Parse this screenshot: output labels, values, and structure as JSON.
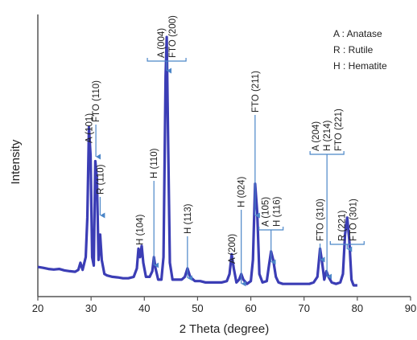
{
  "chart_data": {
    "type": "line",
    "xlabel": "2 Theta (degree)",
    "ylabel": "Intensity",
    "xlim": [
      20,
      90
    ],
    "ylim": [
      0,
      100
    ],
    "x_ticks": [
      20,
      30,
      40,
      50,
      60,
      70,
      80,
      90
    ],
    "y_ticks_shown": false,
    "grid": false,
    "colors": {
      "line": "#3b3db5",
      "axis": "#555555",
      "arrow": "#4b86c8",
      "bracket": "#4b86c8"
    },
    "legend": {
      "placement": "top-right",
      "entries": [
        "A : Anatase",
        "R : Rutile",
        "H : Hematite"
      ]
    },
    "series": [
      {
        "points": [
          [
            20,
            10.5
          ],
          [
            21,
            10.2
          ],
          [
            22,
            9.8
          ],
          [
            23,
            9.6
          ],
          [
            24,
            9.8
          ],
          [
            25,
            9.3
          ],
          [
            26,
            9.0
          ],
          [
            27,
            8.8
          ],
          [
            27.6,
            9.5
          ],
          [
            28,
            12
          ],
          [
            28.4,
            9.5
          ],
          [
            29,
            14
          ],
          [
            29.3,
            28
          ],
          [
            29.6,
            60
          ],
          [
            29.9,
            50
          ],
          [
            30.2,
            14
          ],
          [
            30.5,
            11
          ],
          [
            30.8,
            48
          ],
          [
            31.1,
            42
          ],
          [
            31.4,
            13
          ],
          [
            31.7,
            22
          ],
          [
            32.0,
            13
          ],
          [
            32.5,
            8
          ],
          [
            33,
            7.5
          ],
          [
            34,
            7
          ],
          [
            35,
            6.8
          ],
          [
            36,
            6.5
          ],
          [
            37,
            6.5
          ],
          [
            38,
            7
          ],
          [
            38.6,
            10
          ],
          [
            38.9,
            17
          ],
          [
            39.2,
            14
          ],
          [
            39.5,
            18
          ],
          [
            39.8,
            12
          ],
          [
            40.3,
            7
          ],
          [
            41,
            7
          ],
          [
            41.5,
            9
          ],
          [
            41.8,
            14
          ],
          [
            42.1,
            10
          ],
          [
            42.6,
            6
          ],
          [
            43.2,
            6
          ],
          [
            43.6,
            14
          ],
          [
            44.0,
            78
          ],
          [
            44.2,
            92
          ],
          [
            44.5,
            52
          ],
          [
            44.8,
            12
          ],
          [
            45.3,
            6
          ],
          [
            46,
            6
          ],
          [
            47,
            6
          ],
          [
            47.6,
            7
          ],
          [
            48.1,
            10
          ],
          [
            48.6,
            7
          ],
          [
            49.5,
            5.5
          ],
          [
            50.5,
            5.5
          ],
          [
            51.5,
            5
          ],
          [
            52.5,
            5
          ],
          [
            53.5,
            5
          ],
          [
            54.5,
            5
          ],
          [
            55.5,
            5.5
          ],
          [
            56.0,
            8
          ],
          [
            56.4,
            15
          ],
          [
            56.8,
            10
          ],
          [
            57.3,
            5
          ],
          [
            57.8,
            6
          ],
          [
            58.2,
            8
          ],
          [
            58.6,
            6
          ],
          [
            59.3,
            4.5
          ],
          [
            60,
            5.5
          ],
          [
            60.4,
            13
          ],
          [
            60.8,
            40
          ],
          [
            61.2,
            30
          ],
          [
            61.6,
            8
          ],
          [
            62.2,
            5
          ],
          [
            63,
            5.5
          ],
          [
            63.4,
            11
          ],
          [
            63.8,
            16
          ],
          [
            64.2,
            13
          ],
          [
            64.7,
            7
          ],
          [
            65.2,
            5
          ],
          [
            66,
            4.5
          ],
          [
            67,
            4.5
          ],
          [
            68,
            4.5
          ],
          [
            69,
            4.5
          ],
          [
            70,
            4.5
          ],
          [
            71,
            4.5
          ],
          [
            71.8,
            5
          ],
          [
            72.5,
            7
          ],
          [
            73.0,
            17
          ],
          [
            73.4,
            12
          ],
          [
            73.8,
            6
          ],
          [
            74.2,
            9
          ],
          [
            74.6,
            7
          ],
          [
            75.2,
            5
          ],
          [
            76,
            4.5
          ],
          [
            76.8,
            5
          ],
          [
            77.3,
            8
          ],
          [
            77.7,
            22
          ],
          [
            78.1,
            28
          ],
          [
            78.5,
            20
          ],
          [
            78.9,
            6
          ],
          [
            79.3,
            4
          ],
          [
            80,
            4
          ]
        ]
      }
    ],
    "annotations": [
      {
        "lines": [
          "A (101)"
        ],
        "x": 29.6,
        "peak_y": 60,
        "style": "text"
      },
      {
        "lines": [
          "FTO (110)"
        ],
        "x": 30.9,
        "peak_y": 48,
        "style": "arrow"
      },
      {
        "lines": [
          "R (110)"
        ],
        "x": 31.7,
        "peak_y": 22,
        "style": "arrow"
      },
      {
        "lines": [
          "H (104)"
        ],
        "x": 39.1,
        "peak_y": 18,
        "style": "text"
      },
      {
        "lines": [
          "H (110)"
        ],
        "x": 41.8,
        "peak_y": 14,
        "style": "arrow"
      },
      {
        "lines": [
          "A (004)",
          "FTO (200)"
        ],
        "x": 44.2,
        "peak_y": 92,
        "style": "bracket-top"
      },
      {
        "lines": [
          "H (113)"
        ],
        "x": 48.1,
        "peak_y": 10,
        "style": "arrow"
      },
      {
        "lines": [
          "A (200)"
        ],
        "x": 56.4,
        "peak_y": 15,
        "style": "text"
      },
      {
        "lines": [
          "H (024)"
        ],
        "x": 58.2,
        "peak_y": 8,
        "style": "arrow"
      },
      {
        "lines": [
          "FTO (211)"
        ],
        "x": 60.8,
        "peak_y": 40,
        "style": "arrow"
      },
      {
        "lines": [
          "A (105)",
          "H (116)"
        ],
        "x": 63.8,
        "peak_y": 16,
        "style": "bracket"
      },
      {
        "lines": [
          "FTO (310)"
        ],
        "x": 73.0,
        "peak_y": 17,
        "style": "arrow"
      },
      {
        "lines": [
          "A (204)",
          "H (214)",
          "FTO (221)"
        ],
        "x": 74.3,
        "peak_y": 9,
        "style": "bracket"
      },
      {
        "lines": [
          "R (221)",
          "FTO (301)"
        ],
        "x": 78.1,
        "peak_y": 28,
        "style": "bracket"
      }
    ]
  }
}
